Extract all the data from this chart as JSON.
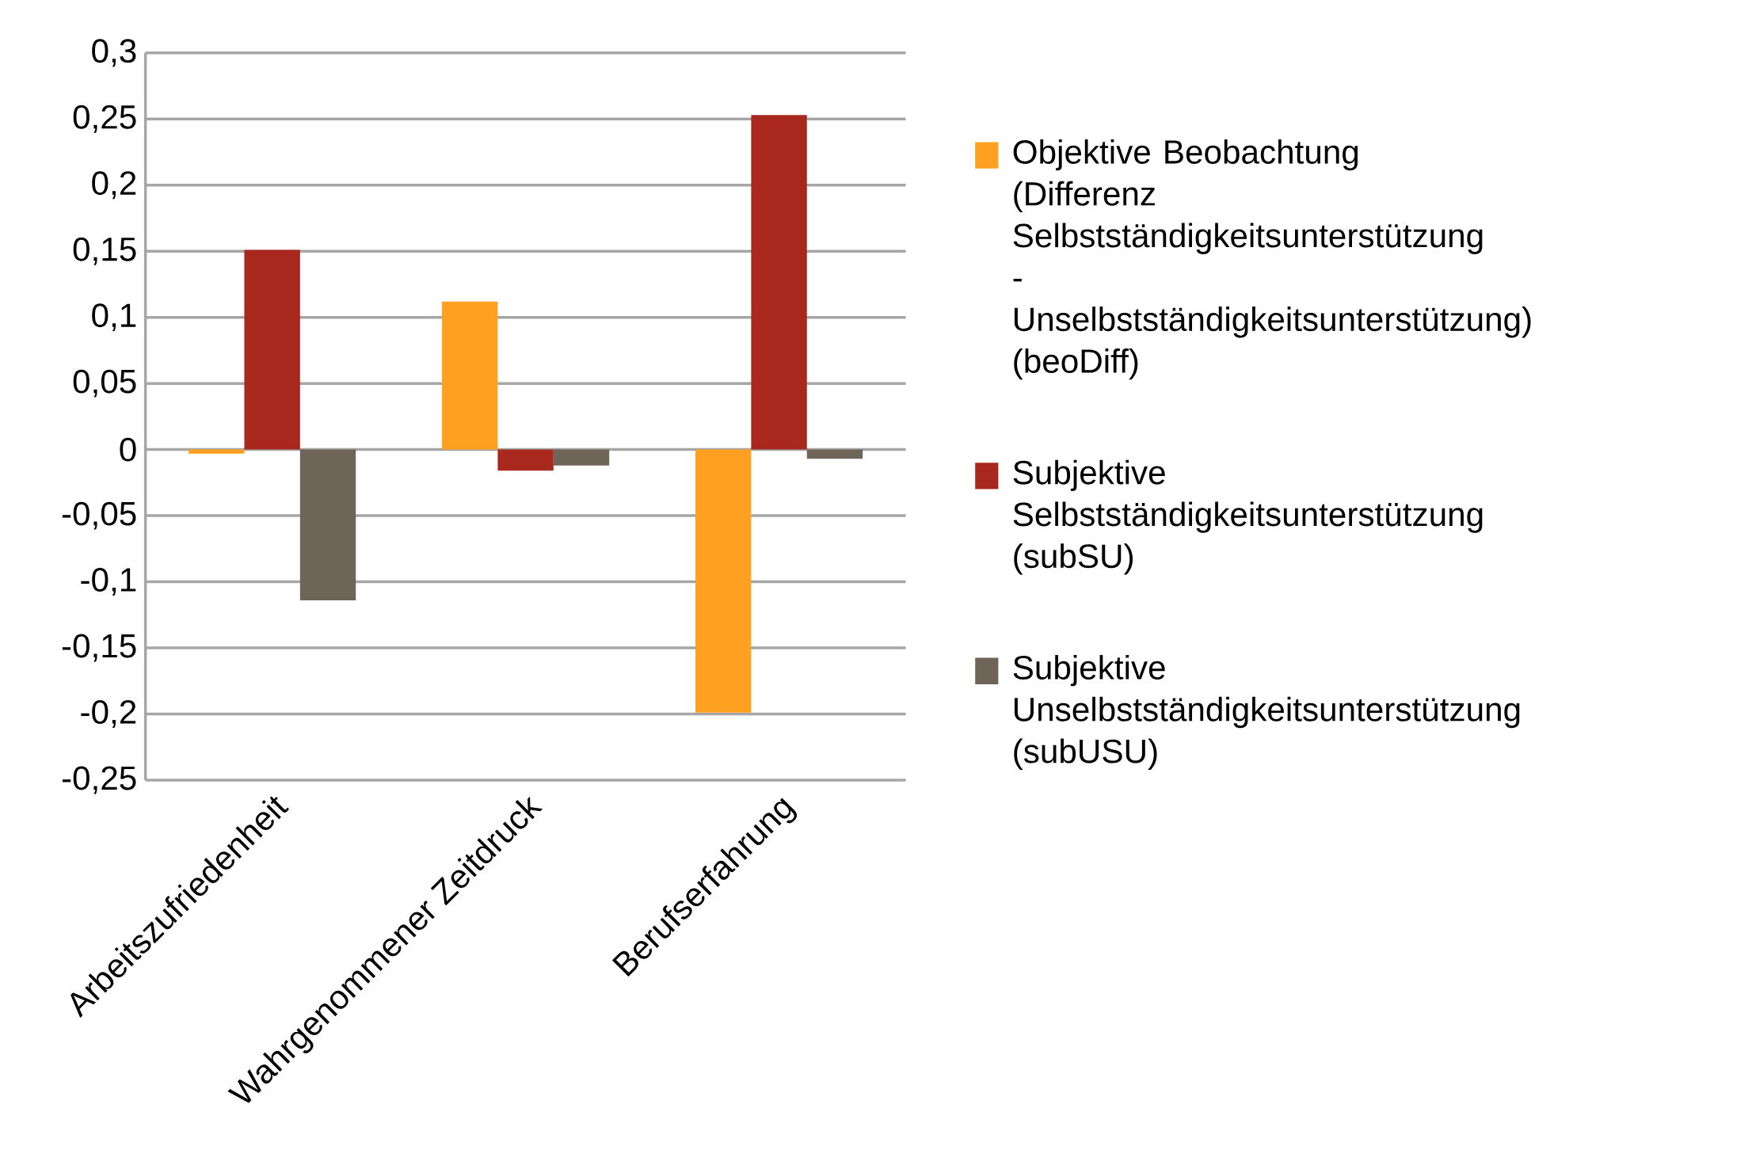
{
  "chart_data": {
    "type": "bar",
    "categories": [
      "Arbeitszufriedenheit",
      "Wahrgenommener Zeitdruck",
      "Berufserfahrung"
    ],
    "series": [
      {
        "name": "Objektive Beobachtung (Differenz Selbstständigkeitsunterstützung - Unselbstständigkeitsunterstützung) (beoDiff)",
        "color": "#ffa020",
        "values": [
          -0.003,
          0.112,
          -0.199
        ]
      },
      {
        "name": "Subjektive Selbstständigkeitsunterstützung (subSU)",
        "color": "#a8281e",
        "values": [
          0.151,
          -0.016,
          0.253
        ]
      },
      {
        "name": "Subjektive Unselbstständigkeitsunterstützung (subUSU)",
        "color": "#6e6558",
        "values": [
          -0.114,
          -0.012,
          -0.007
        ]
      }
    ],
    "ylim": [
      -0.25,
      0.3
    ],
    "yticks": [
      {
        "value": -0.25,
        "label": "-0,25"
      },
      {
        "value": -0.2,
        "label": "-0,2"
      },
      {
        "value": -0.15,
        "label": "-0,15"
      },
      {
        "value": -0.1,
        "label": "-0,1"
      },
      {
        "value": -0.05,
        "label": "-0,05"
      },
      0,
      {
        "value": 0.05,
        "label": "0,05"
      },
      {
        "value": 0.1,
        "label": "0,1"
      },
      {
        "value": 0.15,
        "label": "0,15"
      },
      {
        "value": 0.2,
        "label": "0,2"
      },
      {
        "value": 0.25,
        "label": "0,25"
      },
      {
        "value": 0.3,
        "label": "0,3"
      }
    ],
    "grid": "y",
    "legend": "right"
  }
}
